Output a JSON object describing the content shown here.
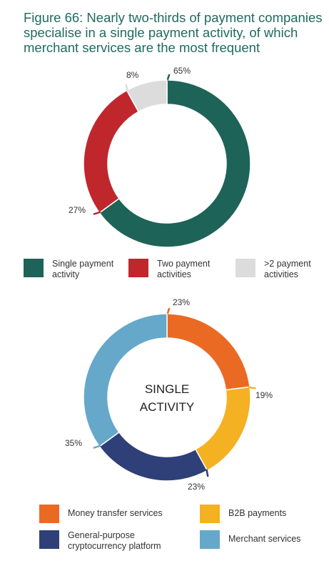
{
  "figure": {
    "title_lines": [
      "Figure 66: Nearly two-thirds of payment companies",
      "specialise in a single payment activity, of which",
      "merchant services are the most frequent"
    ]
  },
  "colors": {
    "title": "#1f6b5f",
    "single": "#1e6358",
    "two": "#c0272d",
    "more": "#dcdcdc",
    "money_transfer": "#ea6a24",
    "b2b": "#f4b121",
    "crypto": "#2f3f78",
    "merchant": "#65a8c9"
  },
  "chart_data": [
    {
      "type": "pie",
      "subtype": "donut",
      "start": "top, clockwise",
      "slices": [
        {
          "label": "Single payment activity",
          "value": 65,
          "value_label": "65%",
          "color": "#1e6358"
        },
        {
          "label": "Two payment activities",
          "value": 27,
          "value_label": "27%",
          "color": "#c0272d"
        },
        {
          "label": ">2 payment activities",
          "value": 8,
          "value_label": "8%",
          "color": "#dcdcdc"
        }
      ],
      "legend": [
        {
          "lines": [
            "Single payment",
            "activity"
          ],
          "color": "#1e6358"
        },
        {
          "lines": [
            "Two payment",
            "activities"
          ],
          "color": "#c0272d"
        },
        {
          "lines": [
            ">2 payment",
            "activities"
          ],
          "color": "#dcdcdc"
        }
      ]
    },
    {
      "type": "pie",
      "subtype": "donut",
      "start": "top, clockwise",
      "center_label": [
        "SINGLE",
        "ACTIVITY"
      ],
      "slices": [
        {
          "label": "Money transfer services",
          "value": 23,
          "value_label": "23%",
          "color": "#ea6a24"
        },
        {
          "label": "B2B payments",
          "value": 19,
          "value_label": "19%",
          "color": "#f4b121"
        },
        {
          "label": "General-purpose cryptocurrency platform",
          "value": 23,
          "value_label": "23%",
          "color": "#2f3f78"
        },
        {
          "label": "Merchant services",
          "value": 35,
          "value_label": "35%",
          "color": "#65a8c9"
        }
      ],
      "legend": [
        {
          "lines": [
            "Money transfer services"
          ],
          "color": "#ea6a24"
        },
        {
          "lines": [
            "B2B payments"
          ],
          "color": "#f4b121"
        },
        {
          "lines": [
            "General-purpose",
            "cryptocurrency platform"
          ],
          "color": "#2f3f78"
        },
        {
          "lines": [
            "Merchant services"
          ],
          "color": "#65a8c9"
        }
      ]
    }
  ]
}
